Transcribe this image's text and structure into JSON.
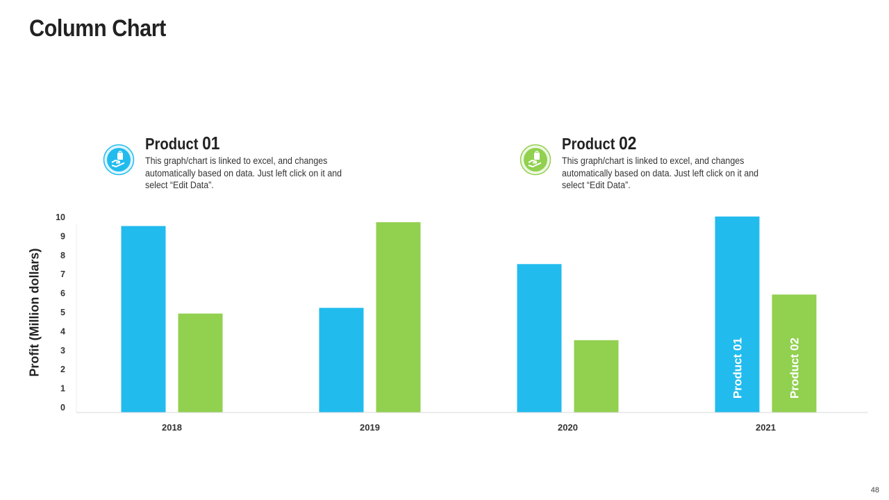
{
  "slide": {
    "title": "Column Chart",
    "page_number": "48"
  },
  "legend": [
    {
      "name_word": "Product",
      "name_num": "01",
      "description": "This graph/chart is linked to excel, and changes automatically based on data. Just left click on it and select “Edit Data”.",
      "icon": "hand-holding-bag-icon",
      "color": "#22BBEE"
    },
    {
      "name_word": "Product",
      "name_num": "02",
      "description": "This graph/chart is linked to excel, and changes automatically based on data. Just left click on it and select “Edit Data”.",
      "icon": "hand-holding-bag-icon",
      "color": "#92D050"
    }
  ],
  "chart_data": {
    "type": "bar",
    "title": "Column Chart",
    "xlabel": "",
    "ylabel": "Profit  (Million dollars)",
    "ylim": [
      0,
      10
    ],
    "yticks": [
      "0",
      "1",
      "2",
      "3",
      "4",
      "5",
      "6",
      "7",
      "8",
      "9",
      "10"
    ],
    "categories": [
      "2018",
      "2019",
      "2020",
      "2021"
    ],
    "series": [
      {
        "name": "Product 01",
        "color": "#22BBEE",
        "values": [
          9.8,
          5.5,
          7.8,
          10.3
        ]
      },
      {
        "name": "Product 02",
        "color": "#92D050",
        "values": [
          5.2,
          10.0,
          3.8,
          6.2
        ]
      }
    ],
    "in_bar_labels": {
      "category": "2021",
      "labels": [
        "Product 01",
        "Product 02"
      ]
    },
    "grid": false,
    "legend": "top"
  }
}
